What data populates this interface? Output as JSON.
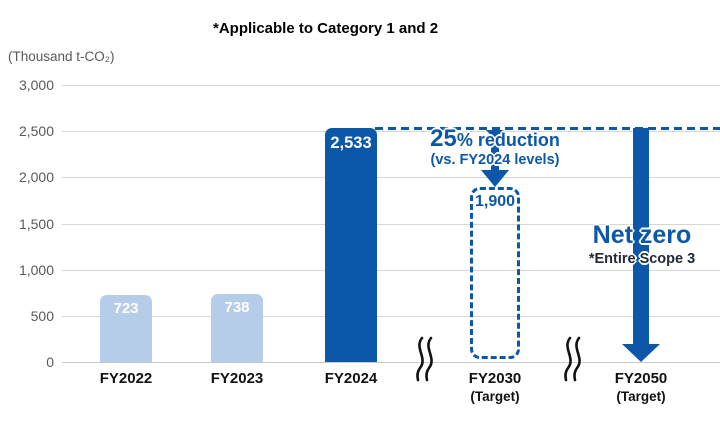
{
  "header": {
    "note": "*Applicable to Category 1 and 2",
    "unit_label": "(Thousand t-CO₂)"
  },
  "chart_data": {
    "type": "bar",
    "title": "*Applicable to Category 1 and 2",
    "ylabel": "(Thousand t-CO₂)",
    "categories": [
      "FY2022",
      "FY2023",
      "FY2024",
      "FY2030 (Target)",
      "FY2050 (Target)"
    ],
    "values": [
      723,
      738,
      2533,
      1900,
      0
    ],
    "value_labels": [
      "723",
      "738",
      "2,533",
      "1,900",
      "Net zero"
    ],
    "bar_styles": [
      "actual-light-blue",
      "actual-light-blue",
      "actual-dark-blue",
      "target-dashed-outline",
      "target-net-zero-arrow"
    ],
    "ylim": [
      0,
      3000
    ],
    "ytick_values": [
      0,
      500,
      1000,
      1500,
      2000,
      2500,
      3000
    ],
    "grid": true,
    "legend": "none",
    "annotations": [
      "25% reduction (vs. FY2024 levels)",
      "Net zero *Entire Scope 3",
      "dashed reference line at FY2024 level (2,533) extending right",
      "axis break between FY2024 and FY2030, and between FY2030 and FY2050"
    ]
  },
  "yticks": [
    {
      "label": "0",
      "value": 0
    },
    {
      "label": "500",
      "value": 500
    },
    {
      "label": "1,000",
      "value": 1000
    },
    {
      "label": "1,500",
      "value": 1500
    },
    {
      "label": "2,000",
      "value": 2000
    },
    {
      "label": "2,500",
      "value": 2500
    },
    {
      "label": "3,000",
      "value": 3000
    }
  ],
  "columns": [
    {
      "id": "fy2022",
      "label": "FY2022",
      "sublabel": "",
      "value": 723,
      "value_label": "723",
      "style": "light"
    },
    {
      "id": "fy2023",
      "label": "FY2023",
      "sublabel": "",
      "value": 738,
      "value_label": "738",
      "style": "light"
    },
    {
      "id": "fy2024",
      "label": "FY2024",
      "sublabel": "",
      "value": 2533,
      "value_label": "2,533",
      "style": "dark"
    },
    {
      "id": "fy2030",
      "label": "FY2030",
      "sublabel": "(Target)",
      "value": 1900,
      "value_label": "1,900",
      "style": "dashed"
    },
    {
      "id": "fy2050",
      "label": "FY2050",
      "sublabel": "(Target)",
      "value": 0,
      "value_label": "",
      "style": "arrow"
    }
  ],
  "annotations": {
    "reduction_big": "25",
    "reduction_rest": "% reduction",
    "reduction_sub": "(vs. FY2024 levels)",
    "netzero": "Net zero",
    "netzero_sub": "*Entire Scope 3"
  },
  "colors": {
    "bar_light": "#b5cde9",
    "bar_dark": "#0b57a8",
    "accent_blue": "#0d57a9",
    "grid": "#d6d6d6",
    "tick_text": "#595959",
    "label_text": "#111111"
  }
}
